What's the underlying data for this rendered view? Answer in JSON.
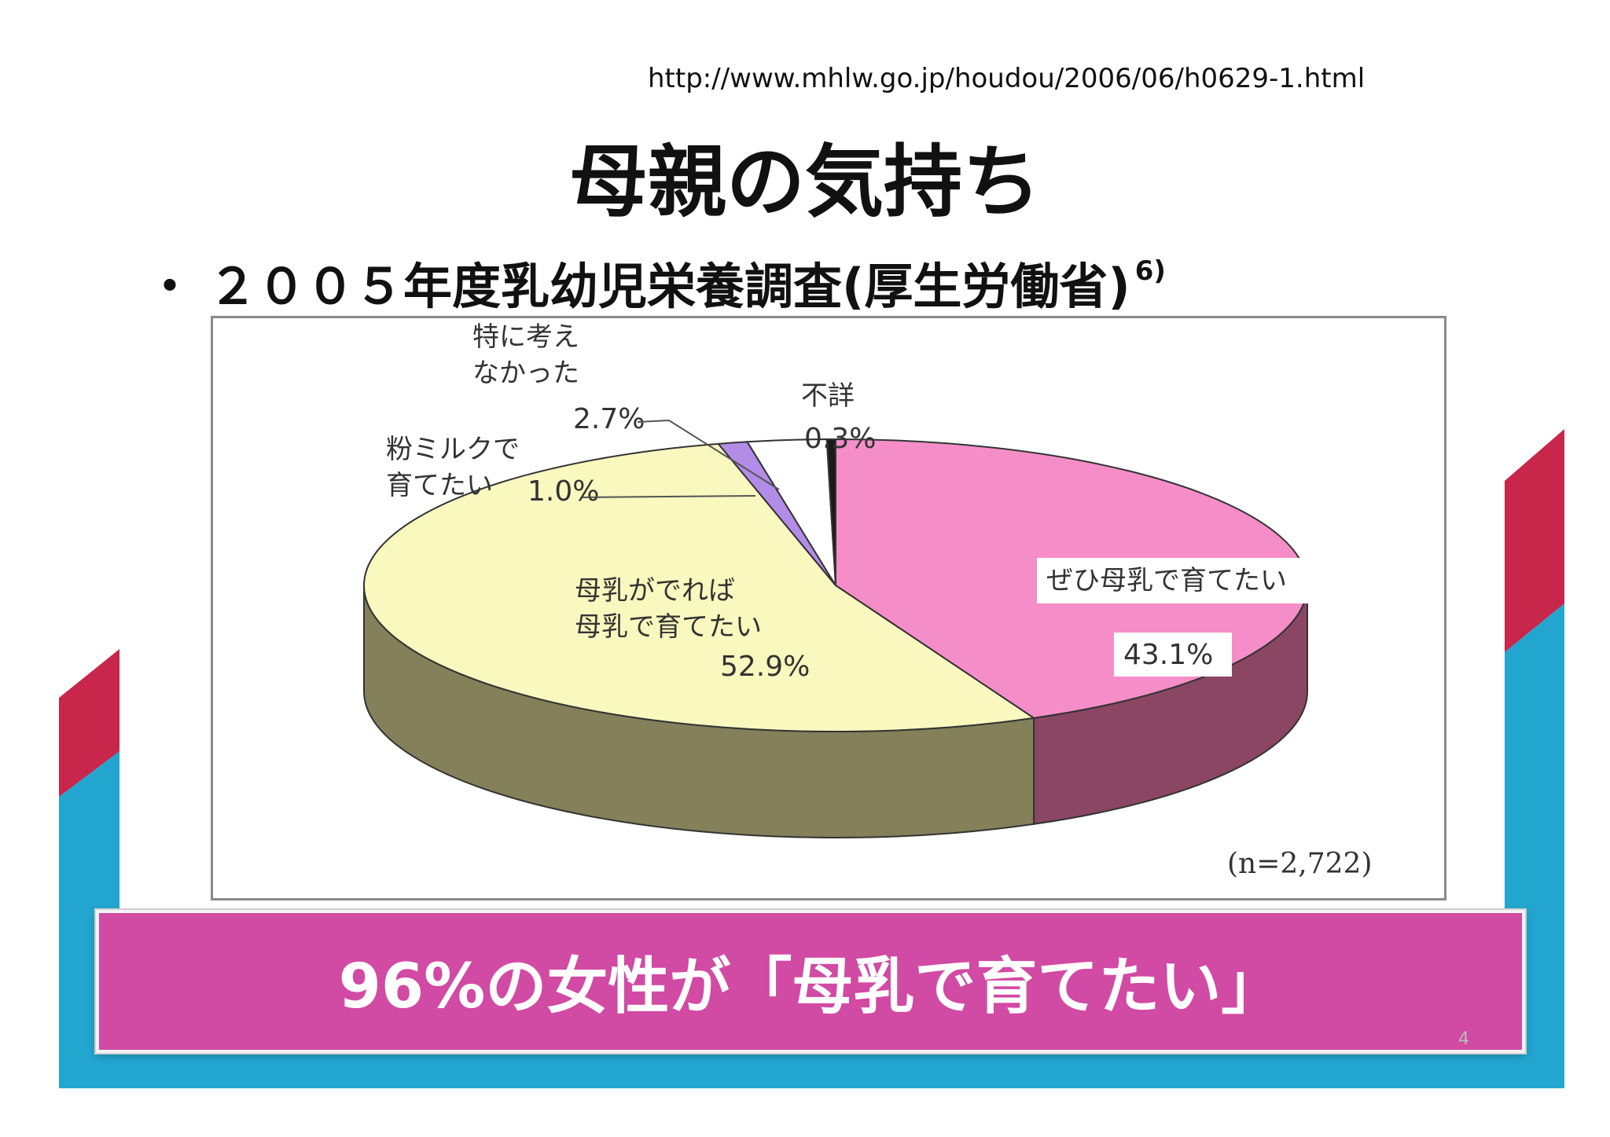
{
  "source_url": "http://www.mhlw.go.jp/houdou/2006/06/h0629-1.html",
  "title": "母親の気持ち",
  "bullet": {
    "marker": "・",
    "text": "２００５年度乳幼児栄養調査(厚生労働省)",
    "superscript": "6)"
  },
  "chart_data": {
    "type": "pie",
    "title": "",
    "sample_size_label": "(n=2,722)",
    "slices": [
      {
        "key": "zehi",
        "label_lines": [
          "ぜひ母乳で育てたい"
        ],
        "value_label": "43.1%",
        "value": 43.1,
        "color": "#f58ec8",
        "side_color": "#8a4663"
      },
      {
        "key": "dereba",
        "label_lines": [
          "母乳がでれば",
          "母乳で育てたい"
        ],
        "value_label": "52.9%",
        "value": 52.9,
        "color": "#f9f8bf",
        "side_color": "#83805a"
      },
      {
        "key": "milk",
        "label_lines": [
          "粉ミルクで",
          "育てたい"
        ],
        "value_label": "1.0%",
        "value": 1.0,
        "color": "#b38ce8",
        "side_color": "#6d5690"
      },
      {
        "key": "nothought",
        "label_lines": [
          "特に考え",
          "なかった"
        ],
        "value_label": "2.7%",
        "value": 2.7,
        "color": "#ffffff",
        "side_color": "#9a9a9a"
      },
      {
        "key": "unknown",
        "label_lines": [
          "不詳"
        ],
        "value_label": "0.3%",
        "value": 0.3,
        "color": "#1a1a1a",
        "side_color": "#000000"
      }
    ]
  },
  "banner": {
    "text": "96%の女性が「母乳で育てたい」",
    "color": "#d14aa3"
  },
  "page_number": "4",
  "colors": {
    "deco_red": "#c8264a",
    "deco_blue": "#22a6cf"
  }
}
